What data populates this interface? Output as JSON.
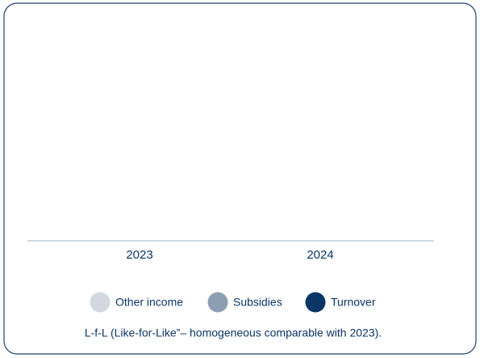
{
  "chart_data": {
    "type": "stacked_bar",
    "categories": [
      "2023",
      "2024"
    ],
    "series": [
      {
        "name": "Other income",
        "color": "#d3d8e0",
        "values": [
          0,
          0
        ]
      },
      {
        "name": "Subsidies",
        "color": "#8e9eb2",
        "values": [
          0,
          0
        ]
      },
      {
        "name": "Turnover",
        "color": "#0b3566",
        "values": [
          0,
          0
        ]
      }
    ],
    "note": "L-f-L (Like-for-Like”– homogeneous comparable with 2023)."
  }
}
